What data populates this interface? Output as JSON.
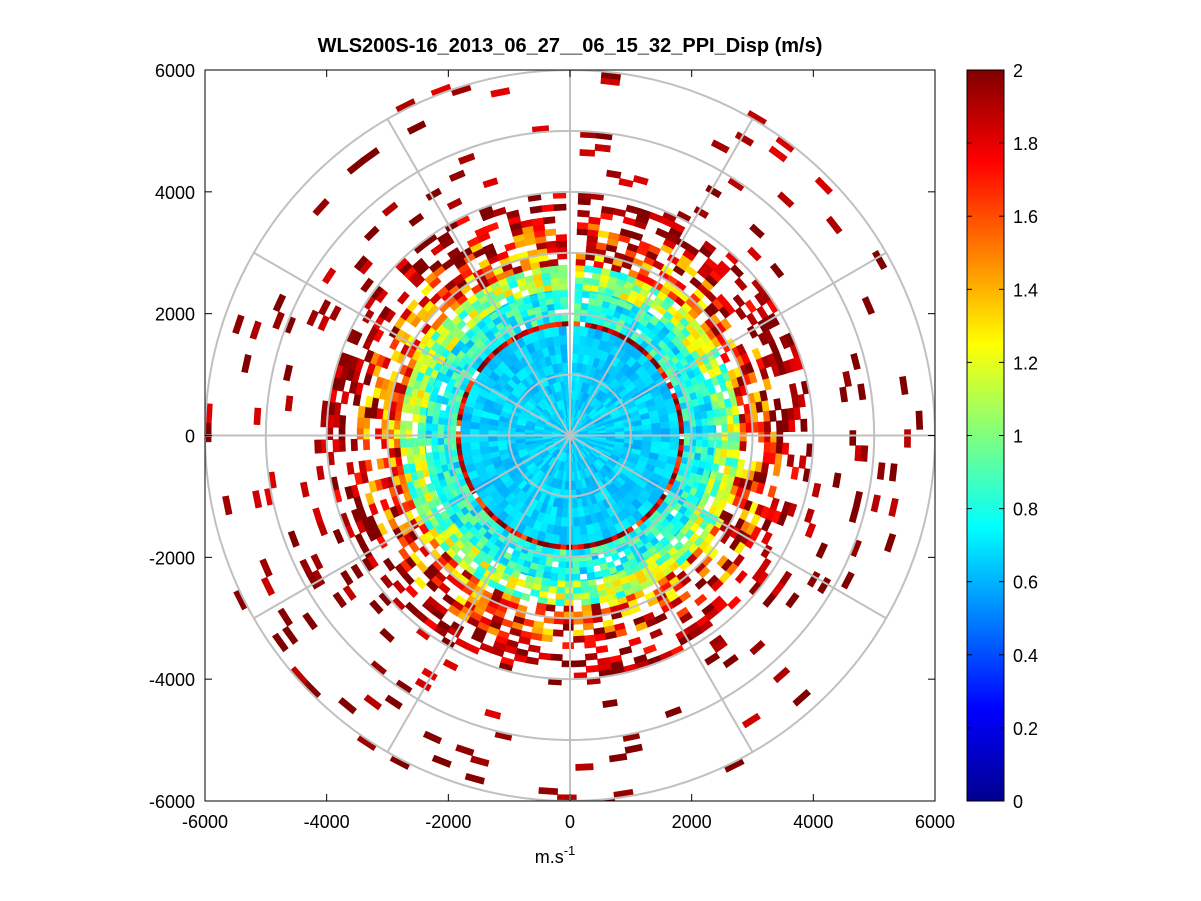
{
  "chart_data": {
    "type": "heatmap",
    "subtype": "polar PPI scan",
    "title": "WLS200S-16_2013_06_27__06_15_32_PPI_Disp (m/s)",
    "xlabel_base": "m.s",
    "xlabel_exponent": "-1",
    "ylabel": "",
    "xlim": [
      -6000,
      6000
    ],
    "ylim": [
      -6000,
      6000
    ],
    "x_ticks": [
      -6000,
      -4000,
      -2000,
      0,
      2000,
      4000,
      6000
    ],
    "y_ticks": [
      6000,
      4000,
      2000,
      0,
      -2000,
      -4000,
      -6000
    ],
    "x_tick_labels": [
      "-6000",
      "-4000",
      "-2000",
      "0",
      "2000",
      "4000",
      "6000"
    ],
    "y_tick_labels": [
      "6000",
      "4000",
      "2000",
      "0",
      "-2000",
      "-4000",
      "-6000"
    ],
    "range_rings": [
      1000,
      2000,
      3000,
      4000,
      5000,
      6000
    ],
    "spoke_angles_deg": [
      0,
      30,
      60,
      90,
      120,
      150,
      180,
      210,
      240,
      270,
      300,
      330
    ],
    "colormap": "jet",
    "colorbar": {
      "min": 0,
      "max": 2,
      "ticks": [
        0,
        0.2,
        0.4,
        0.6,
        0.8,
        1,
        1.2,
        1.4,
        1.6,
        1.8,
        2
      ],
      "tick_labels": [
        "0",
        "0.2",
        "0.4",
        "0.6",
        "0.8",
        "1",
        "1.2",
        "1.4",
        "1.6",
        "1.8",
        "2"
      ]
    },
    "data_gap_azimuth_deg": [
      -2,
      2
    ],
    "range_bands": [
      {
        "r_min": 0,
        "r_max": 1800,
        "mean_value": 0.66,
        "spread": 0.08,
        "coverage": 1.0
      },
      {
        "r_min": 1800,
        "r_max": 1880,
        "mean_value": 1.85,
        "spread": 0.3,
        "coverage": 0.9
      },
      {
        "r_min": 1880,
        "r_max": 2400,
        "mean_value": 0.8,
        "spread": 0.2,
        "coverage": 0.97
      },
      {
        "r_min": 2400,
        "r_max": 2800,
        "mean_value": 1.05,
        "spread": 0.3,
        "coverage": 0.92
      },
      {
        "r_min": 2800,
        "r_max": 3100,
        "mean_value": 1.6,
        "spread": 0.4,
        "coverage": 0.75
      },
      {
        "r_min": 3100,
        "r_max": 3500,
        "mean_value": 1.7,
        "spread": 0.45,
        "coverage": 0.6
      },
      {
        "r_min": 3500,
        "r_max": 4000,
        "mean_value": 1.9,
        "spread": 0.2,
        "coverage": 0.45
      },
      {
        "r_min": 4000,
        "r_max": 5000,
        "mean_value": 1.95,
        "spread": 0.15,
        "coverage": 0.08
      },
      {
        "r_min": 5000,
        "r_max": 6100,
        "mean_value": 1.95,
        "spread": 0.15,
        "coverage": 0.05
      }
    ],
    "colors": {
      "axes_edge": "#000000",
      "grid": "#c0c0c0",
      "background": "#ffffff"
    }
  }
}
